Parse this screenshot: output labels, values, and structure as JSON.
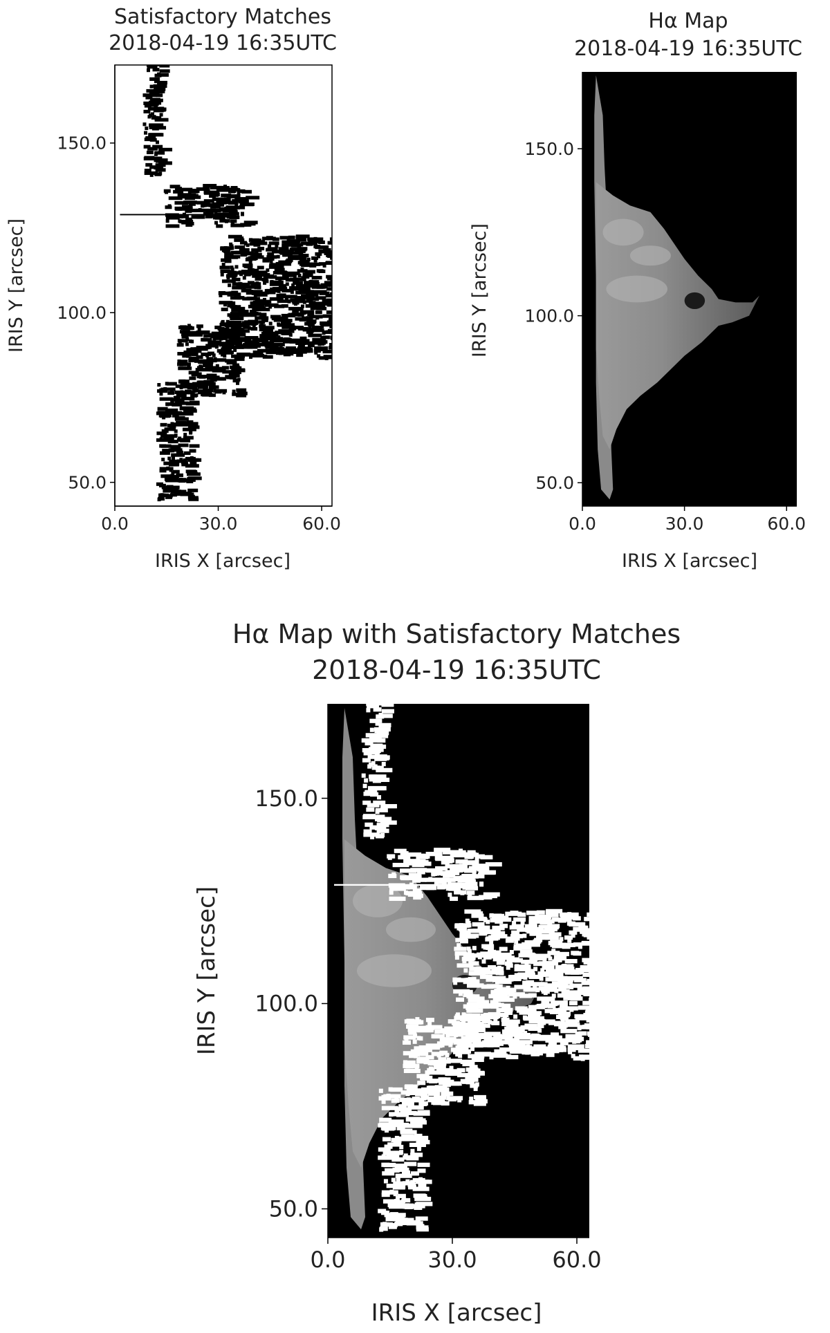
{
  "chart_data": [
    {
      "type": "heatmap",
      "title": "Satisfactory Matches",
      "subtitle": "2018-04-19 16:35UTC",
      "xlabel": "IRIS X [arcsec]",
      "ylabel": "IRIS Y [arcsec]",
      "xlim": [
        0,
        63
      ],
      "ylim": [
        43,
        173
      ],
      "xticks": [
        "0.0",
        "30.0",
        "60.0"
      ],
      "yticks": [
        "50.0",
        "100.0",
        "150.0"
      ],
      "colormap": "binary",
      "grid": false,
      "legend": "none",
      "regions": [
        {
          "name": "lower-left-column",
          "x": [
            12,
            22
          ],
          "y": [
            44,
            80
          ],
          "value": "match"
        },
        {
          "name": "diagonal-band",
          "x": [
            18,
            36
          ],
          "y": [
            75,
            96
          ],
          "value": "match"
        },
        {
          "name": "right-cluster",
          "x": [
            30,
            63
          ],
          "y": [
            86,
            122
          ],
          "value": "match"
        },
        {
          "name": "upper-band",
          "x": [
            14,
            38
          ],
          "y": [
            125,
            137
          ],
          "value": "match"
        },
        {
          "name": "top-column",
          "x": [
            8,
            13
          ],
          "y": [
            140,
            173
          ],
          "value": "match"
        }
      ]
    },
    {
      "type": "heatmap",
      "title": "Hα Map",
      "subtitle": "2018-04-19 16:35UTC",
      "xlabel": "IRIS X [arcsec]",
      "ylabel": "IRIS Y [arcsec]",
      "xlim": [
        0,
        63
      ],
      "ylim": [
        43,
        173
      ],
      "xticks": [
        "0.0",
        "30.0",
        "60.0"
      ],
      "yticks": [
        "50.0",
        "100.0",
        "150.0"
      ],
      "colormap": "gray",
      "grid": false,
      "legend": "none"
    },
    {
      "type": "heatmap",
      "title": "Hα Map with Satisfactory Matches",
      "subtitle": "2018-04-19 16:35UTC",
      "xlabel": "IRIS X [arcsec]",
      "ylabel": "IRIS Y [arcsec]",
      "xlim": [
        0,
        63
      ],
      "ylim": [
        43,
        173
      ],
      "xticks": [
        "0.0",
        "30.0",
        "60.0"
      ],
      "yticks": [
        "50.0",
        "100.0",
        "150.0"
      ],
      "colormap": "gray",
      "overlay": "matches in white",
      "grid": false,
      "legend": "none"
    }
  ],
  "colors": {
    "match_black": "#000000",
    "background_white": "#ffffff",
    "map_background": "#000000",
    "overlay_white": "#ffffff"
  }
}
